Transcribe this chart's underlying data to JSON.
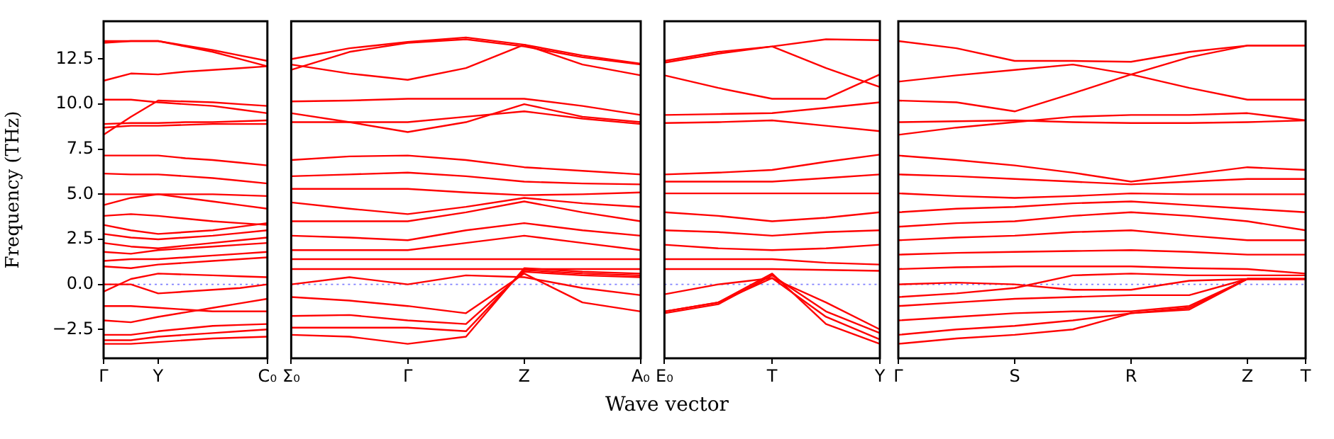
{
  "chart_data": [
    {
      "type": "line",
      "ylabel": "Frequency (THz)",
      "categories": [
        "Γ",
        null,
        "Y",
        null,
        null,
        null,
        "C₀"
      ],
      "ylim": [
        -4.1,
        14.6
      ],
      "yticks": [
        {
          "value": -2.5,
          "label": "−2.5"
        },
        {
          "value": 0,
          "label": "0.0"
        },
        {
          "value": 2.5,
          "label": "2.5"
        },
        {
          "value": 5,
          "label": "5.0"
        },
        {
          "value": 7.5,
          "label": "7.5"
        },
        {
          "value": 10,
          "label": "10.0"
        },
        {
          "value": 12.5,
          "label": "12.5"
        }
      ],
      "ref_lines": [
        {
          "axis": "y",
          "value": 0,
          "color": "#7f7fff",
          "line_style": "dotted"
        }
      ],
      "series": [
        {
          "color": "#ff0000",
          "values": [
            13.5,
            13.5,
            13.5,
            13.25,
            13.0,
            12.7,
            12.4
          ]
        },
        {
          "color": "#ff0000",
          "values": [
            13.4,
            13.5,
            13.5,
            13.2,
            12.9,
            12.5,
            12.1
          ]
        },
        {
          "color": "#ff0000",
          "values": [
            11.3,
            11.7,
            11.65,
            11.8,
            11.9,
            12.0,
            12.1
          ]
        },
        {
          "color": "#ff0000",
          "values": [
            10.25,
            10.25,
            10.1,
            10.0,
            9.9,
            9.7,
            9.5
          ]
        },
        {
          "color": "#ff0000",
          "values": [
            8.3,
            9.3,
            10.2,
            10.15,
            10.1,
            10.0,
            9.9
          ]
        },
        {
          "color": "#ff0000",
          "values": [
            8.9,
            8.95,
            8.95,
            9.0,
            9.0,
            9.05,
            9.1
          ]
        },
        {
          "color": "#ff0000",
          "values": [
            8.7,
            8.8,
            8.8,
            8.85,
            8.9,
            8.9,
            8.9
          ]
        },
        {
          "color": "#ff0000",
          "values": [
            7.15,
            7.15,
            7.15,
            7.0,
            6.9,
            6.75,
            6.6
          ]
        },
        {
          "color": "#ff0000",
          "values": [
            6.15,
            6.1,
            6.1,
            6.0,
            5.9,
            5.75,
            5.6
          ]
        },
        {
          "color": "#ff0000",
          "values": [
            5.0,
            5.0,
            5.0,
            5.0,
            5.0,
            4.95,
            4.9
          ]
        },
        {
          "color": "#ff0000",
          "values": [
            4.4,
            4.8,
            5.0,
            4.8,
            4.6,
            4.4,
            4.2
          ]
        },
        {
          "color": "#ff0000",
          "values": [
            3.8,
            3.9,
            3.8,
            3.65,
            3.5,
            3.4,
            3.3
          ]
        },
        {
          "color": "#ff0000",
          "values": [
            3.3,
            3.0,
            2.8,
            2.9,
            3.0,
            3.2,
            3.4
          ]
        },
        {
          "color": "#ff0000",
          "values": [
            2.8,
            2.6,
            2.5,
            2.6,
            2.7,
            2.85,
            3.0
          ]
        },
        {
          "color": "#ff0000",
          "values": [
            2.3,
            2.1,
            2.0,
            2.15,
            2.3,
            2.45,
            2.6
          ]
        },
        {
          "color": "#ff0000",
          "values": [
            1.8,
            1.7,
            1.9,
            2.0,
            2.1,
            2.2,
            2.3
          ]
        },
        {
          "color": "#ff0000",
          "values": [
            1.3,
            1.4,
            1.4,
            1.5,
            1.6,
            1.7,
            1.8
          ]
        },
        {
          "color": "#ff0000",
          "values": [
            1.0,
            0.9,
            1.1,
            1.2,
            1.3,
            1.4,
            1.5
          ]
        },
        {
          "color": "#ff0000",
          "values": [
            0.0,
            0.0,
            -0.5,
            -0.4,
            -0.3,
            -0.2,
            0.0
          ]
        },
        {
          "color": "#ff0000",
          "values": [
            -0.4,
            0.3,
            0.6,
            0.55,
            0.5,
            0.45,
            0.4
          ]
        },
        {
          "color": "#ff0000",
          "values": [
            -1.2,
            -1.2,
            -1.3,
            -1.4,
            -1.5,
            -1.5,
            -1.5
          ]
        },
        {
          "color": "#ff0000",
          "values": [
            -2.0,
            -2.1,
            -1.8,
            -1.55,
            -1.3,
            -1.05,
            -0.8
          ]
        },
        {
          "color": "#ff0000",
          "values": [
            -2.8,
            -2.8,
            -2.6,
            -2.45,
            -2.3,
            -2.25,
            -2.2
          ]
        },
        {
          "color": "#ff0000",
          "values": [
            -3.1,
            -3.1,
            -2.9,
            -2.8,
            -2.7,
            -2.6,
            -2.5
          ]
        },
        {
          "color": "#ff0000",
          "values": [
            -3.3,
            -3.3,
            -3.2,
            -3.1,
            -3.0,
            -2.95,
            -2.9
          ]
        }
      ]
    },
    {
      "type": "line",
      "xlabel": "Wave vector",
      "tick_labels": "x",
      "categories": [
        "Σ₀",
        null,
        "Γ",
        null,
        "Z",
        null,
        "A₀"
      ],
      "ylim": [
        -4.1,
        14.6
      ],
      "ref_lines": [
        {
          "axis": "y",
          "value": 0,
          "color": "#7f7fff",
          "line_style": "dotted"
        }
      ],
      "series": [
        {
          "color": "#ff0000",
          "values": [
            12.5,
            13.1,
            13.45,
            13.7,
            13.3,
            12.7,
            12.25
          ]
        },
        {
          "color": "#ff0000",
          "values": [
            11.9,
            12.9,
            13.4,
            13.6,
            13.2,
            12.6,
            12.2
          ]
        },
        {
          "color": "#ff0000",
          "values": [
            12.2,
            11.7,
            11.35,
            12.0,
            13.3,
            12.2,
            11.6
          ]
        },
        {
          "color": "#ff0000",
          "values": [
            10.15,
            10.2,
            10.3,
            10.3,
            10.3,
            9.9,
            9.4
          ]
        },
        {
          "color": "#ff0000",
          "values": [
            9.5,
            9.0,
            8.45,
            9.0,
            10.0,
            9.3,
            9.0
          ]
        },
        {
          "color": "#ff0000",
          "values": [
            9.0,
            9.0,
            9.0,
            9.3,
            9.6,
            9.2,
            8.9
          ]
        },
        {
          "color": "#ff0000",
          "values": [
            6.9,
            7.1,
            7.15,
            6.9,
            6.5,
            6.3,
            6.1
          ]
        },
        {
          "color": "#ff0000",
          "values": [
            6.0,
            6.1,
            6.2,
            6.0,
            5.7,
            5.6,
            5.55
          ]
        },
        {
          "color": "#ff0000",
          "values": [
            5.3,
            5.3,
            5.3,
            5.1,
            4.95,
            5.0,
            5.1
          ]
        },
        {
          "color": "#ff0000",
          "values": [
            4.55,
            4.2,
            3.9,
            4.3,
            4.8,
            4.5,
            4.3
          ]
        },
        {
          "color": "#ff0000",
          "values": [
            3.5,
            3.5,
            3.5,
            4.0,
            4.6,
            4.0,
            3.5
          ]
        },
        {
          "color": "#ff0000",
          "values": [
            2.7,
            2.6,
            2.45,
            3.0,
            3.4,
            3.0,
            2.7
          ]
        },
        {
          "color": "#ff0000",
          "values": [
            1.9,
            1.9,
            1.9,
            2.3,
            2.7,
            2.3,
            1.9
          ]
        },
        {
          "color": "#ff0000",
          "values": [
            1.4,
            1.4,
            1.4,
            1.4,
            1.4,
            1.4,
            1.4
          ]
        },
        {
          "color": "#ff0000",
          "values": [
            0.85,
            0.85,
            0.85,
            0.85,
            0.85,
            0.85,
            0.85
          ]
        },
        {
          "color": "#ff0000",
          "values": [
            0.0,
            0.4,
            0.0,
            0.5,
            0.4,
            -0.2,
            -0.6
          ]
        },
        {
          "color": "#ff0000",
          "values": [
            -0.7,
            -0.9,
            -1.2,
            -1.6,
            0.6,
            -1.0,
            -1.5
          ]
        },
        {
          "color": "#ff0000",
          "values": [
            -1.75,
            -1.7,
            -2.0,
            -2.2,
            0.7,
            0.5,
            0.4
          ]
        },
        {
          "color": "#ff0000",
          "values": [
            -2.4,
            -2.4,
            -2.4,
            -2.6,
            0.8,
            0.6,
            0.5
          ]
        },
        {
          "color": "#ff0000",
          "values": [
            -2.8,
            -2.9,
            -3.3,
            -2.9,
            0.9,
            0.7,
            0.6
          ]
        }
      ]
    },
    {
      "type": "line",
      "tick_labels": "x",
      "categories": [
        "E₀",
        null,
        "T",
        null,
        "Y"
      ],
      "ylim": [
        -4.1,
        14.6
      ],
      "ref_lines": [
        {
          "axis": "y",
          "value": 0,
          "color": "#7f7fff",
          "line_style": "dotted"
        }
      ],
      "series": [
        {
          "color": "#ff0000",
          "values": [
            12.4,
            12.9,
            13.2,
            13.6,
            13.55
          ]
        },
        {
          "color": "#ff0000",
          "values": [
            11.6,
            10.9,
            10.3,
            10.3,
            11.65
          ]
        },
        {
          "color": "#ff0000",
          "values": [
            12.3,
            12.8,
            13.2,
            12.0,
            10.95
          ]
        },
        {
          "color": "#ff0000",
          "values": [
            9.4,
            9.45,
            9.5,
            9.8,
            10.1
          ]
        },
        {
          "color": "#ff0000",
          "values": [
            8.95,
            9.0,
            9.1,
            8.8,
            8.5
          ]
        },
        {
          "color": "#ff0000",
          "values": [
            6.1,
            6.2,
            6.35,
            6.8,
            7.2
          ]
        },
        {
          "color": "#ff0000",
          "values": [
            5.7,
            5.7,
            5.7,
            5.9,
            6.1
          ]
        },
        {
          "color": "#ff0000",
          "values": [
            5.05,
            5.05,
            5.05,
            5.05,
            5.05
          ]
        },
        {
          "color": "#ff0000",
          "values": [
            4.0,
            3.8,
            3.5,
            3.7,
            4.0
          ]
        },
        {
          "color": "#ff0000",
          "values": [
            3.0,
            2.9,
            2.7,
            2.9,
            3.0
          ]
        },
        {
          "color": "#ff0000",
          "values": [
            2.2,
            2.0,
            1.9,
            2.0,
            2.2
          ]
        },
        {
          "color": "#ff0000",
          "values": [
            1.4,
            1.4,
            1.4,
            1.2,
            1.1
          ]
        },
        {
          "color": "#ff0000",
          "values": [
            0.85,
            0.85,
            0.85,
            0.8,
            0.75
          ]
        },
        {
          "color": "#ff0000",
          "values": [
            -0.55,
            0.0,
            0.35,
            -1.0,
            -2.5
          ]
        },
        {
          "color": "#ff0000",
          "values": [
            -1.5,
            -1.0,
            0.35,
            -1.8,
            -3.05
          ]
        },
        {
          "color": "#ff0000",
          "values": [
            -1.6,
            -1.1,
            0.5,
            -1.5,
            -2.7
          ]
        },
        {
          "color": "#ff0000",
          "values": [
            -1.5,
            -1.0,
            0.6,
            -2.2,
            -3.3
          ]
        }
      ]
    },
    {
      "type": "line",
      "tick_labels": "x",
      "categories": [
        "Γ",
        null,
        "S",
        null,
        "R",
        null,
        "Z",
        "T"
      ],
      "ylim": [
        -4.1,
        14.6
      ],
      "ref_lines": [
        {
          "axis": "y",
          "value": 0,
          "color": "#7f7fff",
          "line_style": "dotted"
        }
      ],
      "series": [
        {
          "color": "#ff0000",
          "values": [
            13.5,
            13.1,
            12.4,
            12.4,
            12.35,
            12.9,
            13.25,
            13.25
          ]
        },
        {
          "color": "#ff0000",
          "values": [
            11.25,
            11.6,
            11.9,
            12.2,
            11.65,
            12.6,
            13.25,
            13.25
          ]
        },
        {
          "color": "#ff0000",
          "values": [
            10.2,
            10.1,
            9.6,
            10.6,
            11.65,
            10.9,
            10.25,
            10.25
          ]
        },
        {
          "color": "#ff0000",
          "values": [
            9.0,
            9.05,
            9.1,
            9.0,
            8.95,
            8.95,
            9.0,
            9.1
          ]
        },
        {
          "color": "#ff0000",
          "values": [
            8.3,
            8.7,
            9.0,
            9.3,
            9.4,
            9.4,
            9.5,
            9.1
          ]
        },
        {
          "color": "#ff0000",
          "values": [
            7.15,
            6.9,
            6.6,
            6.2,
            5.7,
            6.1,
            6.5,
            6.35
          ]
        },
        {
          "color": "#ff0000",
          "values": [
            6.1,
            6.0,
            5.85,
            5.7,
            5.55,
            5.7,
            5.85,
            5.85
          ]
        },
        {
          "color": "#ff0000",
          "values": [
            5.05,
            4.9,
            4.8,
            4.9,
            5.05,
            5.0,
            5.0,
            5.0
          ]
        },
        {
          "color": "#ff0000",
          "values": [
            4.0,
            4.2,
            4.3,
            4.5,
            4.6,
            4.4,
            4.2,
            4.0
          ]
        },
        {
          "color": "#ff0000",
          "values": [
            3.2,
            3.4,
            3.5,
            3.8,
            4.0,
            3.8,
            3.5,
            3.0
          ]
        },
        {
          "color": "#ff0000",
          "values": [
            2.45,
            2.6,
            2.7,
            2.9,
            3.0,
            2.7,
            2.45,
            2.45
          ]
        },
        {
          "color": "#ff0000",
          "values": [
            1.65,
            1.75,
            1.8,
            1.85,
            1.9,
            1.8,
            1.65,
            1.65
          ]
        },
        {
          "color": "#ff0000",
          "values": [
            0.85,
            0.95,
            1.0,
            1.0,
            1.0,
            0.9,
            0.85,
            0.6
          ]
        },
        {
          "color": "#ff0000",
          "values": [
            0.0,
            0.1,
            0.0,
            -0.3,
            -0.3,
            0.2,
            0.3,
            0.3
          ]
        },
        {
          "color": "#ff0000",
          "values": [
            -0.7,
            -0.5,
            -0.2,
            0.5,
            0.6,
            0.5,
            0.5,
            0.5
          ]
        },
        {
          "color": "#ff0000",
          "values": [
            -1.2,
            -1.0,
            -0.8,
            -0.7,
            -0.6,
            -0.6,
            0.3,
            0.3
          ]
        },
        {
          "color": "#ff0000",
          "values": [
            -2.0,
            -1.8,
            -1.6,
            -1.5,
            -1.5,
            -1.2,
            0.3,
            0.3
          ]
        },
        {
          "color": "#ff0000",
          "values": [
            -2.8,
            -2.5,
            -2.3,
            -2.0,
            -1.6,
            -1.4,
            0.3,
            0.3
          ]
        },
        {
          "color": "#ff0000",
          "values": [
            -3.3,
            -3.0,
            -2.8,
            -2.5,
            -1.6,
            -1.3,
            0.3,
            0.3
          ]
        }
      ]
    }
  ]
}
